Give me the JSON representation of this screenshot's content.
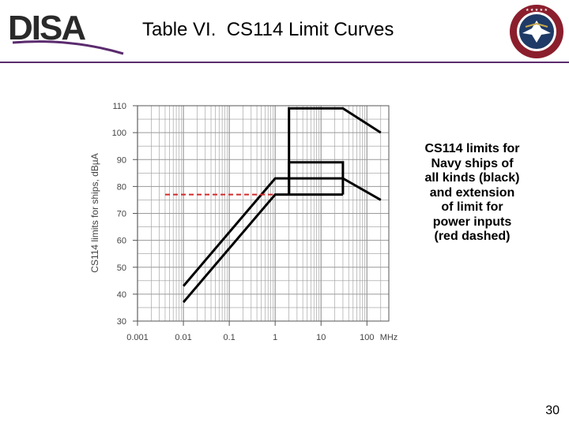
{
  "slide": {
    "title": "Table VI.  CS114 Limit Curves",
    "caption": "CS114 limits for Navy ships of all kinds (black) and extension of limit for power inputs (red dashed)",
    "page_number": "30",
    "logo_text": "DISA",
    "seal_text": "DEFENSE INFORMATION SYSTEMS AGENCY"
  },
  "colors": {
    "accent": "#5b2b6e",
    "seal_red": "#8b1e2d",
    "seal_blue": "#1f3a66",
    "limit_line": "#000000",
    "extension_line": "#d22b2b"
  },
  "chart_data": {
    "type": "line",
    "xlabel": "MHz",
    "ylabel": "CS114 limits  for ships, dBµA",
    "x_scale": "log",
    "xlim": [
      0.001,
      300
    ],
    "ylim": [
      30,
      110
    ],
    "x_ticks": [
      0.001,
      0.01,
      0.1,
      1,
      10,
      100
    ],
    "x_tick_labels": [
      "0.001",
      "0.01",
      "0.1",
      "1",
      "10",
      "100"
    ],
    "y_ticks": [
      30,
      40,
      50,
      60,
      70,
      80,
      90,
      100,
      110
    ],
    "y_tick_labels": [
      "30",
      "40",
      "50",
      "60",
      "70",
      "80",
      "90",
      "100",
      "110"
    ],
    "grid": true,
    "series": [
      {
        "style": "solid",
        "color": "#000000",
        "x": [
          0.01,
          1,
          2,
          30,
          200
        ],
        "y": [
          43,
          83,
          83,
          83,
          75
        ]
      },
      {
        "style": "solid",
        "color": "#000000",
        "x": [
          0.01,
          1,
          2
        ],
        "y": [
          37,
          77,
          77
        ]
      },
      {
        "style": "solid",
        "color": "#000000",
        "x": [
          2,
          2,
          30,
          30
        ],
        "y": [
          77,
          89,
          89,
          77
        ]
      },
      {
        "style": "solid",
        "color": "#000000",
        "x": [
          2,
          2,
          30,
          200
        ],
        "y": [
          77,
          109,
          109,
          100
        ]
      },
      {
        "style": "solid",
        "color": "#000000",
        "x": [
          2,
          30
        ],
        "y": [
          77,
          77
        ]
      },
      {
        "style": "dashed",
        "color": "#d22b2b",
        "x": [
          0.004,
          1
        ],
        "y": [
          77,
          77
        ]
      }
    ]
  }
}
